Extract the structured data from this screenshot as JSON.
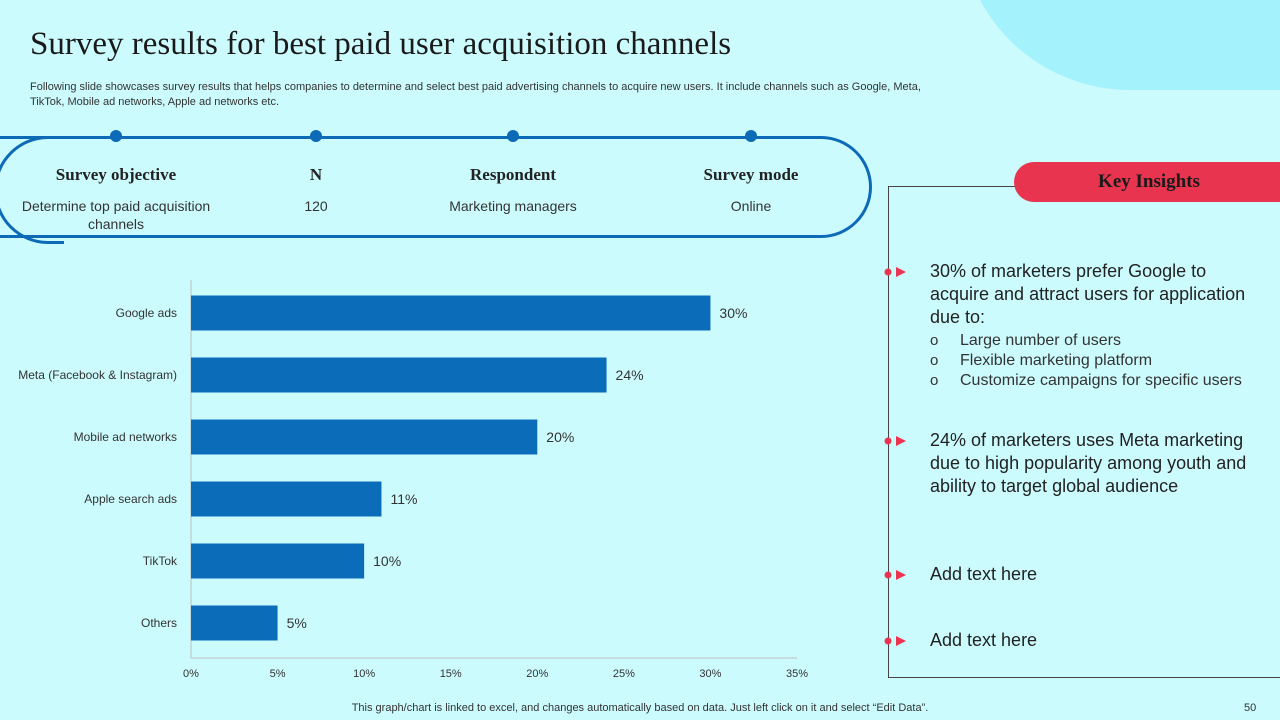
{
  "title": "Survey results for best paid user acquisition channels",
  "subtitle": "Following slide showcases survey results that helps companies to determine and select best paid advertising channels to acquire new users. It include channels such as Google, Meta,  TikTok, Mobile ad networks, Apple ad networks etc.",
  "survey": {
    "columns": [
      {
        "head": "Survey objective",
        "value": "Determine top paid acquisition channels"
      },
      {
        "head": "N",
        "value": "120"
      },
      {
        "head": "Respondent",
        "value": "Marketing managers"
      },
      {
        "head": "Survey mode",
        "value": "Online"
      }
    ]
  },
  "chart_data": {
    "type": "bar",
    "orientation": "horizontal",
    "categories": [
      "Google ads",
      "Meta (Facebook & Instagram)",
      "Mobile ad networks",
      "Apple search ads",
      "TikTok",
      "Others"
    ],
    "values": [
      30,
      24,
      20,
      11,
      10,
      5
    ],
    "value_labels": [
      "30%",
      "24%",
      "20%",
      "11%",
      "10%",
      "5%"
    ],
    "xlim": [
      0,
      35
    ],
    "xticks": [
      "0%",
      "5%",
      "10%",
      "15%",
      "20%",
      "25%",
      "30%",
      "35%"
    ],
    "bar_color": "#0b6cba",
    "grid": false
  },
  "insights": {
    "title": "Key Insights",
    "items": [
      {
        "text": "30% of marketers prefer Google to acquire and attract users for application due to:",
        "sub": [
          "Large number  of users",
          "Flexible marketing platform",
          "Customize campaigns for specific users"
        ]
      },
      {
        "text": "24% of marketers uses Meta marketing due to high popularity among youth and ability to target global audience"
      },
      {
        "text": "Add text here"
      },
      {
        "text": "Add text here"
      }
    ],
    "accent_color": "#e8344f"
  },
  "footer": {
    "note": "This graph/chart is linked to excel,  and changes automatically based on data. Just left click on it and select “Edit Data”.",
    "page_number": "50"
  }
}
